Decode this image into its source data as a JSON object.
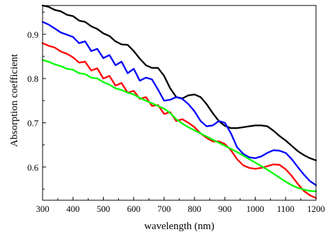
{
  "chart_data": {
    "type": "line",
    "title": "",
    "xlabel": "wavelength (nm)",
    "ylabel": "Absorption coefficient",
    "xlim": [
      300,
      1200
    ],
    "ylim": [
      0.525,
      0.965
    ],
    "xticks": [
      300,
      400,
      500,
      600,
      700,
      800,
      900,
      1000,
      1100,
      1200
    ],
    "xtick_labels": [
      "300",
      "400",
      "500",
      "600",
      "700",
      "800",
      "900",
      "1000",
      "1100",
      "1200"
    ],
    "yticks": [
      0.6,
      0.7,
      0.8,
      0.9
    ],
    "ytick_labels": [
      "0.6",
      "0.7",
      "0.8",
      "0.9"
    ],
    "grid": false,
    "legend": "none",
    "series": [
      {
        "color": "#000000",
        "x": [
          300,
          320,
          340,
          360,
          380,
          400,
          420,
          440,
          460,
          480,
          500,
          520,
          540,
          560,
          580,
          600,
          620,
          640,
          660,
          680,
          700,
          720,
          740,
          760,
          780,
          800,
          820,
          840,
          860,
          880,
          900,
          920,
          940,
          960,
          980,
          1000,
          1020,
          1040,
          1060,
          1080,
          1100,
          1120,
          1140,
          1160,
          1180,
          1200
        ],
        "y": [
          0.965,
          0.962,
          0.955,
          0.952,
          0.944,
          0.941,
          0.931,
          0.928,
          0.918,
          0.912,
          0.902,
          0.896,
          0.884,
          0.877,
          0.876,
          0.862,
          0.845,
          0.83,
          0.824,
          0.824,
          0.806,
          0.778,
          0.758,
          0.755,
          0.762,
          0.764,
          0.758,
          0.742,
          0.722,
          0.704,
          0.693,
          0.688,
          0.688,
          0.69,
          0.692,
          0.694,
          0.694,
          0.692,
          0.682,
          0.67,
          0.66,
          0.648,
          0.636,
          0.627,
          0.62,
          0.615
        ]
      },
      {
        "color": "#0000ff",
        "x": [
          300,
          320,
          340,
          360,
          380,
          400,
          420,
          440,
          460,
          480,
          500,
          520,
          540,
          560,
          580,
          600,
          620,
          640,
          660,
          680,
          700,
          720,
          740,
          760,
          780,
          800,
          820,
          840,
          860,
          880,
          900,
          920,
          940,
          960,
          980,
          1000,
          1020,
          1040,
          1060,
          1080,
          1100,
          1120,
          1140,
          1160,
          1180,
          1200
        ],
        "y": [
          0.928,
          0.922,
          0.913,
          0.904,
          0.899,
          0.894,
          0.88,
          0.884,
          0.862,
          0.867,
          0.846,
          0.853,
          0.83,
          0.838,
          0.812,
          0.822,
          0.795,
          0.802,
          0.798,
          0.775,
          0.75,
          0.752,
          0.758,
          0.754,
          0.742,
          0.726,
          0.704,
          0.692,
          0.694,
          0.704,
          0.7,
          0.676,
          0.645,
          0.63,
          0.622,
          0.62,
          0.624,
          0.632,
          0.638,
          0.637,
          0.632,
          0.618,
          0.6,
          0.583,
          0.568,
          0.559
        ]
      },
      {
        "color": "#ff0000",
        "x": [
          300,
          320,
          340,
          360,
          380,
          400,
          420,
          440,
          460,
          480,
          500,
          520,
          540,
          560,
          580,
          600,
          620,
          640,
          660,
          680,
          700,
          720,
          740,
          760,
          780,
          800,
          820,
          840,
          860,
          880,
          900,
          920,
          940,
          960,
          980,
          1000,
          1020,
          1040,
          1060,
          1080,
          1100,
          1120,
          1140,
          1160,
          1180,
          1200
        ],
        "y": [
          0.88,
          0.874,
          0.87,
          0.861,
          0.856,
          0.848,
          0.836,
          0.838,
          0.818,
          0.823,
          0.8,
          0.806,
          0.784,
          0.79,
          0.768,
          0.772,
          0.754,
          0.758,
          0.738,
          0.74,
          0.72,
          0.724,
          0.704,
          0.708,
          0.7,
          0.69,
          0.676,
          0.666,
          0.658,
          0.658,
          0.652,
          0.638,
          0.618,
          0.604,
          0.598,
          0.596,
          0.598,
          0.602,
          0.606,
          0.605,
          0.595,
          0.58,
          0.562,
          0.546,
          0.536,
          0.53
        ]
      },
      {
        "color": "#00ff00",
        "x": [
          300,
          320,
          340,
          360,
          380,
          400,
          420,
          440,
          460,
          480,
          500,
          520,
          540,
          560,
          580,
          600,
          620,
          640,
          660,
          680,
          700,
          720,
          740,
          760,
          780,
          800,
          820,
          840,
          860,
          880,
          900,
          920,
          940,
          960,
          980,
          1000,
          1020,
          1040,
          1060,
          1080,
          1100,
          1120,
          1140,
          1160,
          1180,
          1200
        ],
        "y": [
          0.842,
          0.838,
          0.832,
          0.828,
          0.822,
          0.82,
          0.812,
          0.81,
          0.802,
          0.8,
          0.792,
          0.786,
          0.778,
          0.774,
          0.768,
          0.764,
          0.756,
          0.75,
          0.744,
          0.738,
          0.732,
          0.722,
          0.708,
          0.698,
          0.69,
          0.683,
          0.676,
          0.669,
          0.662,
          0.655,
          0.648,
          0.641,
          0.634,
          0.626,
          0.618,
          0.61,
          0.602,
          0.594,
          0.585,
          0.576,
          0.567,
          0.559,
          0.553,
          0.549,
          0.546,
          0.545
        ]
      }
    ]
  }
}
